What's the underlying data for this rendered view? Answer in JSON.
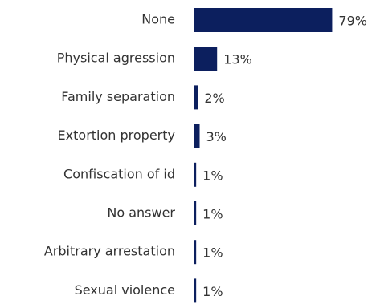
{
  "chart_data": {
    "type": "hbar",
    "categories": [
      "None",
      "Physical agression",
      "Family separation",
      "Extortion property",
      "Confiscation of id",
      "No answer",
      "Arbitrary arrestation",
      "Sexual violence"
    ],
    "values": [
      79,
      13,
      2,
      3,
      1,
      1,
      1,
      1
    ],
    "value_labels": [
      "79%",
      "13%",
      "2%",
      "3%",
      "1%",
      "1%",
      "1%",
      "1%"
    ],
    "color": "#0c1f5e"
  }
}
